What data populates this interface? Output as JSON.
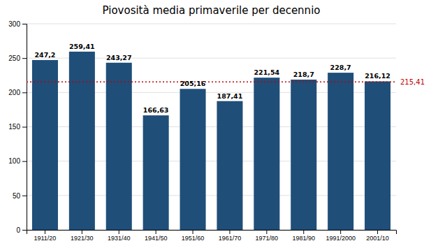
{
  "chart_data": {
    "type": "bar",
    "title": "Piovosità media primaverile per decennio",
    "categories": [
      "1911/20",
      "1921/30",
      "1931/40",
      "1941/50",
      "1951/60",
      "1961/70",
      "1971/80",
      "1981/90",
      "1991/2000",
      "2001/10"
    ],
    "values": [
      247.2,
      259.41,
      243.27,
      166.63,
      205.16,
      187.41,
      221.54,
      218.7,
      228.7,
      216.12
    ],
    "value_labels": [
      "247,2",
      "259,41",
      "243,27",
      "166,63",
      "205,16",
      "187,41",
      "221,54",
      "218,7",
      "228,7",
      "216,12"
    ],
    "data_labels": true,
    "color": "#1F4E79",
    "reference_line": {
      "value": 215.41,
      "label": "215,41",
      "color": "#C00000"
    },
    "ylim": [
      0,
      300
    ],
    "yticks": [
      0,
      50,
      100,
      150,
      200,
      250,
      300
    ],
    "grid": true
  }
}
